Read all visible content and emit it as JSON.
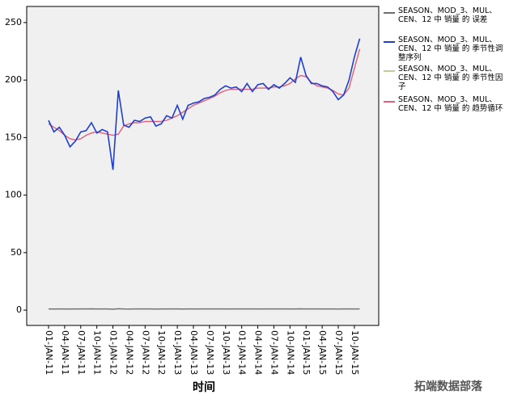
{
  "chart_data": {
    "type": "line",
    "x_label": "时间",
    "watermark": "拓端数据部落",
    "categories": [
      "01-JAN-11",
      null,
      null,
      "04-JAN-11",
      null,
      null,
      "07-JAN-11",
      null,
      null,
      "10-JAN-11",
      null,
      null,
      "01-JAN-12",
      null,
      null,
      "04-JAN-12",
      null,
      null,
      "07-JAN-12",
      null,
      null,
      "10-JAN-12",
      null,
      null,
      "01-JAN-13",
      null,
      null,
      "04-JAN-13",
      null,
      null,
      "07-JAN-13",
      null,
      null,
      "10-JAN-13",
      null,
      null,
      "01-JAN-14",
      null,
      null,
      "04-JAN-14",
      null,
      null,
      "07-JAN-14",
      null,
      null,
      "10-JAN-14",
      null,
      null,
      "01-JAN-15",
      null,
      null,
      "04-JAN-15",
      null,
      null,
      "07-JAN-15",
      null,
      null,
      "10-JAN-15",
      null
    ],
    "series": [
      {
        "name": "SEASON、MOD_3、MUL、CEN、12 中 销量 的 误差",
        "color": "#6e6e6e",
        "values": [
          1.02,
          0.97,
          1.02,
          1.0,
          0.95,
          0.99,
          1.04,
          1.03,
          1.06,
          0.99,
          1.02,
          1.01,
          0.8,
          1.25,
          1.01,
          0.98,
          1.01,
          1.01,
          1.02,
          1.02,
          0.98,
          0.99,
          1.02,
          1.0,
          1.05,
          0.97,
          1.02,
          1.01,
          1.01,
          1.01,
          1.01,
          1.01,
          1.02,
          1.02,
          1.01,
          1.01,
          0.99,
          1.03,
          0.99,
          1.02,
          1.02,
          0.99,
          1.01,
          0.99,
          1.01,
          1.03,
          0.99,
          1.08,
          1.0,
          0.99,
          1.01,
          1.01,
          1.01,
          0.99,
          0.97,
          1.0,
          1.04,
          1.05,
          1.04
        ]
      },
      {
        "name": "SEASON、MOD_3、MUL、CEN、12 中 销量 的 季节性调整序列",
        "color": "#1f3fcf",
        "values": [
          165,
          155,
          159,
          152,
          142,
          147,
          155,
          156,
          163,
          154,
          157,
          155,
          122,
          191,
          161,
          159,
          165,
          164,
          167,
          168,
          160,
          162,
          169,
          167,
          178,
          166,
          178,
          180,
          181,
          184,
          185,
          187,
          192,
          195,
          193,
          194,
          190,
          197,
          190,
          196,
          197,
          192,
          196,
          193,
          197,
          202,
          198,
          220,
          204,
          197,
          197,
          195,
          194,
          190,
          183,
          187,
          200,
          220,
          236
        ]
      },
      {
        "name": "SEASON、MOD_3、MUL、CEN、12 中 销量 的 季节性因子",
        "color": "#c8c89a",
        "values": [
          1.01,
          0.99,
          1.02,
          0.98,
          1.0,
          1.01,
          0.99,
          1.0,
          1.02,
          0.98,
          1.0,
          1.01,
          1.01,
          0.99,
          1.02,
          0.98,
          1.0,
          1.01,
          0.99,
          1.0,
          1.02,
          0.98,
          1.0,
          1.01,
          1.01,
          0.99,
          1.02,
          0.98,
          1.0,
          1.01,
          0.99,
          1.0,
          1.02,
          0.98,
          1.0,
          1.01,
          1.01,
          0.99,
          1.02,
          0.98,
          1.0,
          1.01,
          0.99,
          1.0,
          1.02,
          0.98,
          1.0,
          1.01,
          1.01,
          0.99,
          1.02,
          0.98,
          1.0,
          1.01,
          0.99,
          1.0,
          1.02,
          0.98,
          1.0
        ]
      },
      {
        "name": "SEASON、MOD_3、MUL、CEN、12 中 销量 的 趋势循环",
        "color": "#e0607a",
        "values": [
          162,
          159,
          156,
          152,
          149,
          148,
          149,
          152,
          154,
          155,
          154,
          153,
          152,
          153,
          160,
          162,
          163,
          163,
          164,
          164,
          164,
          164,
          165,
          167,
          169,
          172,
          175,
          178,
          180,
          182,
          184,
          186,
          189,
          191,
          192,
          192,
          192,
          192,
          192,
          193,
          193,
          193,
          194,
          194,
          195,
          197,
          201,
          204,
          203,
          198,
          195,
          194,
          193,
          191,
          188,
          187,
          193,
          210,
          227
        ]
      }
    ],
    "ylim": [
      -13.3,
      264
    ],
    "yticks": [
      0,
      50,
      100,
      150,
      200,
      250
    ]
  }
}
